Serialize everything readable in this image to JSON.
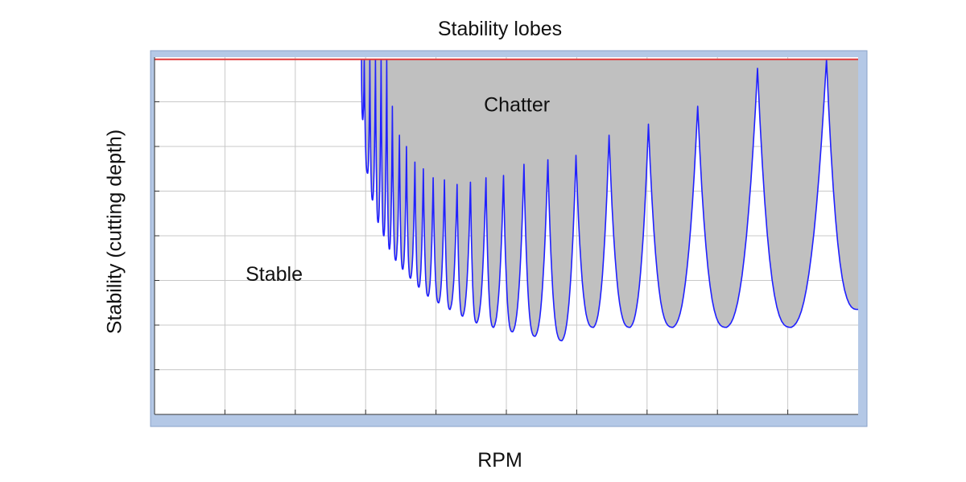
{
  "chart_data": {
    "type": "area",
    "title": "Stability lobes",
    "xlabel": "RPM",
    "ylabel": "Stability (cutting depth)",
    "xlim": [
      0,
      10
    ],
    "ylim": [
      0,
      8
    ],
    "grid": true,
    "tick_labels_shown": false,
    "colors": {
      "frame": "#b4c8e6",
      "chatter_fill": "#c0c0c0",
      "lobe_line": "#2020ff",
      "limit_line": "#e03a3a",
      "grid": "#c8c8c8"
    },
    "limit_line_y": 7.95,
    "lobe_boundary_y_max": 7.95,
    "region_labels": [
      {
        "text": "Stable",
        "x": 1.7,
        "y": 3.15
      },
      {
        "text": "Chatter",
        "x": 5.15,
        "y": 6.95
      }
    ],
    "lobes": [
      {
        "x": 2.96,
        "y": 6.6
      },
      {
        "x": 3.03,
        "y": 5.4
      },
      {
        "x": 3.1,
        "y": 4.8
      },
      {
        "x": 3.18,
        "y": 4.3
      },
      {
        "x": 3.26,
        "y": 4.0
      },
      {
        "x": 3.34,
        "y": 3.7
      },
      {
        "x": 3.43,
        "y": 3.45
      },
      {
        "x": 3.53,
        "y": 3.25
      },
      {
        "x": 3.64,
        "y": 3.05
      },
      {
        "x": 3.76,
        "y": 2.85
      },
      {
        "x": 3.89,
        "y": 2.65
      },
      {
        "x": 4.04,
        "y": 2.5
      },
      {
        "x": 4.2,
        "y": 2.35
      },
      {
        "x": 4.38,
        "y": 2.2
      },
      {
        "x": 4.58,
        "y": 2.05
      },
      {
        "x": 4.82,
        "y": 1.95
      },
      {
        "x": 5.09,
        "y": 1.85
      },
      {
        "x": 5.41,
        "y": 1.75
      },
      {
        "x": 5.79,
        "y": 1.65
      },
      {
        "x": 6.24,
        "y": 1.95
      },
      {
        "x": 6.76,
        "y": 1.95
      },
      {
        "x": 7.37,
        "y": 1.95
      },
      {
        "x": 8.13,
        "y": 1.95
      },
      {
        "x": 9.05,
        "y": 1.95
      },
      {
        "x": 10.0,
        "y": 2.35
      }
    ],
    "lobe_peaks": [
      {
        "x": 2.98,
        "y": 7.95
      },
      {
        "x": 3.06,
        "y": 7.95
      },
      {
        "x": 3.14,
        "y": 7.95
      },
      {
        "x": 3.22,
        "y": 7.95
      },
      {
        "x": 3.3,
        "y": 7.95
      },
      {
        "x": 3.38,
        "y": 6.9
      },
      {
        "x": 3.48,
        "y": 6.25
      },
      {
        "x": 3.58,
        "y": 6.0
      },
      {
        "x": 3.7,
        "y": 5.65
      },
      {
        "x": 3.82,
        "y": 5.5
      },
      {
        "x": 3.96,
        "y": 5.3
      },
      {
        "x": 4.12,
        "y": 5.25
      },
      {
        "x": 4.3,
        "y": 5.15
      },
      {
        "x": 4.49,
        "y": 5.2
      },
      {
        "x": 4.71,
        "y": 5.3
      },
      {
        "x": 4.96,
        "y": 5.35
      },
      {
        "x": 5.25,
        "y": 5.6
      },
      {
        "x": 5.59,
        "y": 5.7
      },
      {
        "x": 5.99,
        "y": 5.8
      },
      {
        "x": 6.46,
        "y": 6.25
      },
      {
        "x": 7.02,
        "y": 6.5
      },
      {
        "x": 7.72,
        "y": 6.9
      },
      {
        "x": 8.57,
        "y": 7.75
      },
      {
        "x": 9.55,
        "y": 7.95
      }
    ]
  }
}
